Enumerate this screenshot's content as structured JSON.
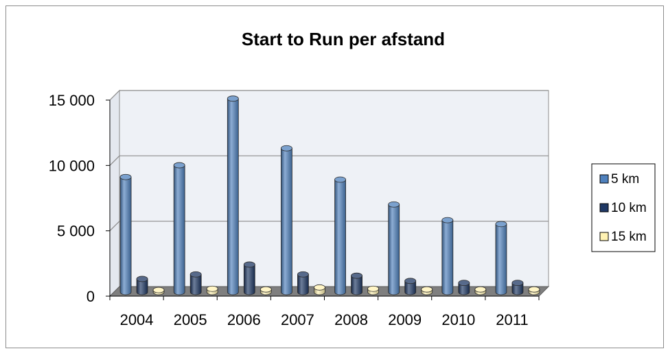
{
  "chart_data": {
    "type": "bar",
    "title": "Start to Run per afstand",
    "categories": [
      "2004",
      "2005",
      "2006",
      "2007",
      "2008",
      "2009",
      "2010",
      "2011"
    ],
    "series": [
      {
        "name": "5 km",
        "color": "#4f81bd",
        "values": [
          8800,
          9700,
          14800,
          11000,
          8600,
          6700,
          5500,
          5200
        ]
      },
      {
        "name": "10 km",
        "color": "#1f3864",
        "values": [
          1000,
          1350,
          2100,
          1350,
          1250,
          850,
          700,
          700
        ]
      },
      {
        "name": "15 km",
        "color": "#fff2b3",
        "values": [
          150,
          250,
          200,
          350,
          250,
          200,
          200,
          200
        ]
      }
    ],
    "y_ticks": [
      "0",
      "5 000",
      "10 000",
      "15 000"
    ],
    "ylim": [
      0,
      15000
    ],
    "grid": true,
    "legend_position": "right"
  }
}
